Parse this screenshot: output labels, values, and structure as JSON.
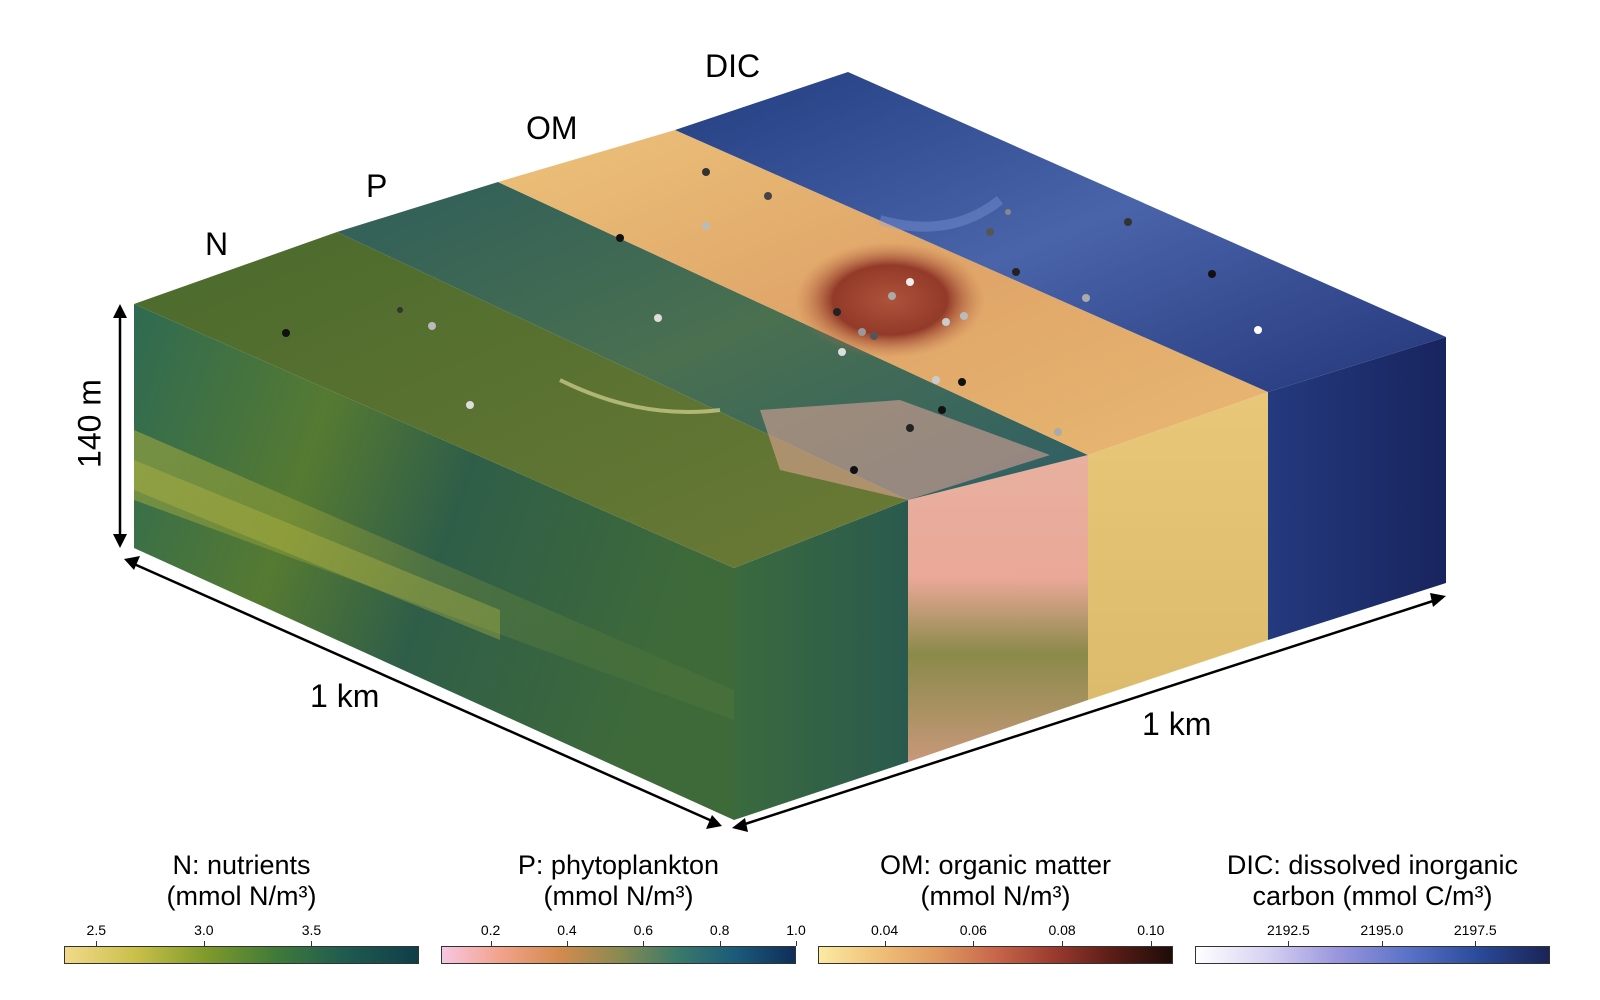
{
  "labels": {
    "N": "N",
    "P": "P",
    "OM": "OM",
    "DIC": "DIC",
    "depth": "140 m",
    "width_left": "1 km",
    "width_right": "1 km"
  },
  "colorbars": [
    {
      "id": "N",
      "title_line1": "N: nutrients",
      "title_line2": "(mmol N/m³)",
      "ticks": [
        "2.5",
        "3.0",
        "3.5"
      ],
      "tick_values": [
        2.5,
        3.0,
        3.5
      ],
      "range": [
        2.35,
        4.0
      ],
      "colors": [
        "#f2d98a",
        "#c9c04a",
        "#7f9a2a",
        "#3f7a3a",
        "#1e5a50",
        "#0f3e48"
      ]
    },
    {
      "id": "P",
      "title_line1": "P: phytoplankton",
      "title_line2": "(mmol N/m³)",
      "ticks": [
        "0.2",
        "0.4",
        "0.6",
        "0.8",
        "1.0"
      ],
      "tick_values": [
        0.2,
        0.4,
        0.6,
        0.8,
        1.0
      ],
      "range": [
        0.07,
        1.0
      ],
      "colors": [
        "#f7c6e2",
        "#f2a28a",
        "#d48a4e",
        "#8a8a50",
        "#3a7a6a",
        "#1a5a7a",
        "#0f2e5a"
      ]
    },
    {
      "id": "OM",
      "title_line1": "OM: organic matter",
      "title_line2": "(mmol N/m³)",
      "ticks": [
        "0.04",
        "0.06",
        "0.08",
        "0.10"
      ],
      "tick_values": [
        0.04,
        0.06,
        0.08,
        0.1
      ],
      "range": [
        0.025,
        0.105
      ],
      "colors": [
        "#fbeaa2",
        "#f0c078",
        "#e09a60",
        "#c8664a",
        "#9a3a2e",
        "#5a1c16",
        "#1e0c08"
      ]
    },
    {
      "id": "DIC",
      "title_line1": "DIC: dissolved inorganic",
      "title_line2": "carbon (mmol C/m³)",
      "ticks": [
        "2192.5",
        "2195.0",
        "2197.5"
      ],
      "tick_values": [
        2192.5,
        2195.0,
        2197.5
      ],
      "range": [
        2190.0,
        2199.5
      ],
      "colors": [
        "#ffffff",
        "#d6d2f2",
        "#9a96de",
        "#5a72c8",
        "#2a4a9a",
        "#1a2456"
      ]
    }
  ],
  "colors": {
    "N_top": "#4e6e2e",
    "P_top": "#3e6a56",
    "OM_top": "#e6b06c",
    "DIC_top": "#2c4a8a",
    "front_face": "#2f6048",
    "om_slab": "#e6a89a",
    "dic_slab": "#e6c67a",
    "right_face": "#1e2f6a",
    "eddy": "#8a2e22"
  }
}
